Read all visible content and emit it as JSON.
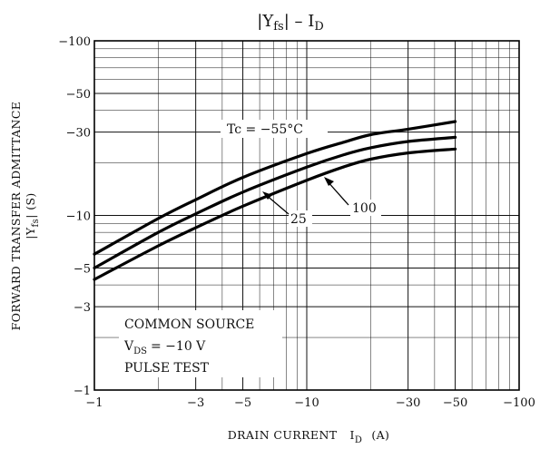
{
  "chart_data": {
    "type": "line",
    "title_parts": {
      "left": "|Y",
      "left_sub": "fs",
      "mid": "| – I",
      "right_sub": "D"
    },
    "xlabel": {
      "main": "DRAIN CURRENT",
      "sym": "I",
      "sub": "D",
      "unit": "(A)"
    },
    "ylabel": {
      "line1": "FORWARD TRANSFER ADMITTANCE",
      "line2_pre": "|Y",
      "line2_sub": "fs",
      "line2_post": "|  (S)"
    },
    "x_scale": "log",
    "y_scale": "log",
    "xlim": [
      -1,
      -100
    ],
    "ylim": [
      -1,
      -100
    ],
    "x_ticks": [
      -1,
      -3,
      -5,
      -10,
      -30,
      -50,
      -100
    ],
    "x_tick_labels": [
      "−1",
      "−3",
      "−5",
      "−10",
      "−30",
      "−50",
      "−100"
    ],
    "y_ticks": [
      -1,
      -3,
      -5,
      -10,
      -30,
      -50,
      -100
    ],
    "y_tick_labels": [
      "−1",
      "−3",
      "−5",
      "−10",
      "−30",
      "−50",
      "−100"
    ],
    "grid": true,
    "x_unit": "A",
    "y_unit": "S",
    "series": [
      {
        "name": "Tc = −55°C",
        "x": [
          -1,
          -2,
          -3,
          -5,
          -10,
          -15,
          -20,
          -30,
          -50
        ],
        "y": [
          -6.0,
          -9.6,
          -12.3,
          -16.5,
          -22.6,
          -26.3,
          -29.0,
          -31.2,
          -34.5
        ]
      },
      {
        "name": "25",
        "x": [
          -1,
          -2,
          -3,
          -5,
          -10,
          -15,
          -20,
          -30,
          -50
        ],
        "y": [
          -5.0,
          -8.0,
          -10.2,
          -13.6,
          -18.9,
          -22.3,
          -24.4,
          -26.5,
          -28.0
        ]
      },
      {
        "name": "100",
        "x": [
          -1,
          -2,
          -3,
          -5,
          -10,
          -15,
          -20,
          -30,
          -50
        ],
        "y": [
          -4.3,
          -6.7,
          -8.5,
          -11.3,
          -15.9,
          -19.0,
          -21.0,
          -22.8,
          -24.0
        ]
      }
    ],
    "annotations": {
      "tc_label": "Tc = −55°C",
      "label_25": "25",
      "label_100": "100",
      "info": [
        "COMMON SOURCE",
        "= −10 V",
        "PULSE TEST"
      ],
      "vds_sym": "V",
      "vds_sub": "DS"
    }
  }
}
